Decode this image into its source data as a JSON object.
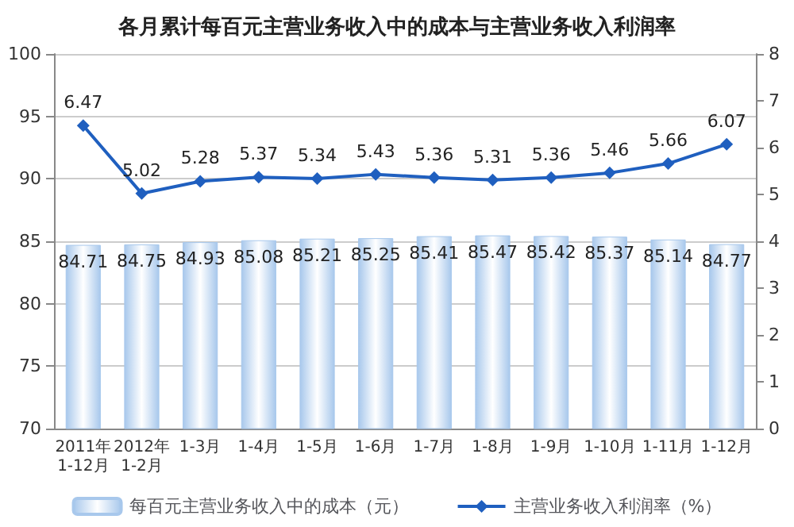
{
  "chart_data": {
    "type": "bar",
    "title": "各月累计每百元主营业务收入中的成本与主营业务收入利润率",
    "categories": [
      "2011年\n1-12月",
      "2012年\n1-2月",
      "1-3月",
      "1-4月",
      "1-5月",
      "1-6月",
      "1-7月",
      "1-8月",
      "1-9月",
      "1-10月",
      "1-11月",
      "1-12月"
    ],
    "series": [
      {
        "name": "每百元主营业务收入中的成本（元）",
        "color": "#a8c8ec",
        "values": [
          84.71,
          84.75,
          84.93,
          85.08,
          85.21,
          85.25,
          85.41,
          85.47,
          85.42,
          85.37,
          85.14,
          84.77
        ]
      },
      {
        "name": "主营业务收入利润率（%）",
        "type": "line",
        "axis": "y2",
        "color": "#1f5fbf",
        "marker": "diamond",
        "line_style": "solid",
        "values": [
          6.47,
          5.02,
          5.28,
          5.37,
          5.34,
          5.43,
          5.36,
          5.31,
          5.36,
          5.46,
          5.66,
          6.07
        ]
      }
    ],
    "ylim": [
      70,
      100
    ],
    "yticks": [
      70,
      75,
      80,
      85,
      90,
      95,
      100
    ],
    "y2lim": [
      0,
      8
    ],
    "y2ticks": [
      0,
      1,
      2,
      3,
      4,
      5,
      6,
      7,
      8
    ],
    "grid": "y",
    "legend": "bottom",
    "data_labels": true
  }
}
